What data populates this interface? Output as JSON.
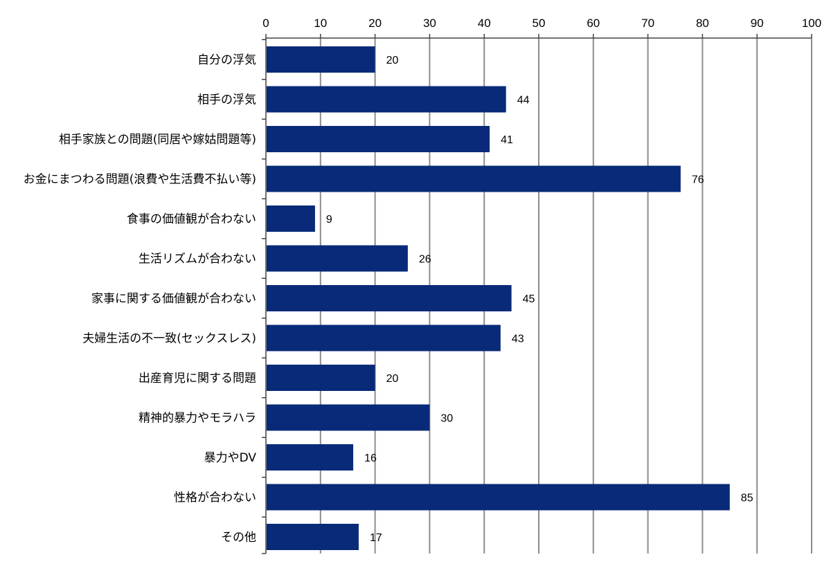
{
  "chart_data": {
    "type": "bar",
    "orientation": "horizontal",
    "categories": [
      "自分の浮気",
      "相手の浮気",
      "相手家族との問題(同居や嫁姑問題等)",
      "お金にまつわる問題(浪費や生活費不払い等)",
      "食事の価値観が合わない",
      "生活リズムが合わない",
      "家事に関する価値観が合わない",
      "夫婦生活の不一致(セックスレス)",
      "出産育児に関する問題",
      "精神的暴力やモラハラ",
      "暴力やDV",
      "性格が合わない",
      "その他"
    ],
    "values": [
      20,
      44,
      41,
      76,
      9,
      26,
      45,
      43,
      20,
      30,
      16,
      85,
      17
    ],
    "xlim": [
      0,
      100
    ],
    "xticks": [
      0,
      10,
      20,
      30,
      40,
      50,
      60,
      70,
      80,
      90,
      100
    ],
    "x_axis_position": "top",
    "grid": "vertical",
    "data_labels": true,
    "legend": "none",
    "title": "",
    "xlabel": "",
    "ylabel": "",
    "colors": {
      "bar": "#082A78",
      "grid": "#8c8c8c",
      "axis": "#404040"
    }
  }
}
